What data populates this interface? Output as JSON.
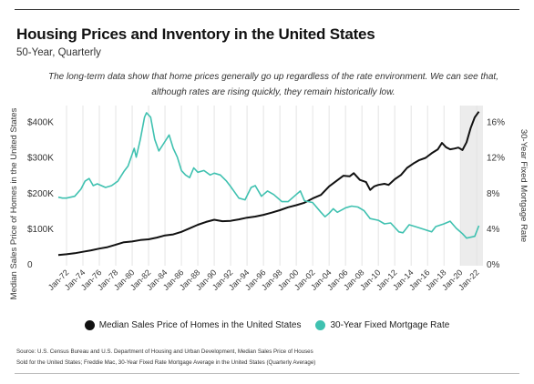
{
  "header": {
    "title": "Housing Prices and Inventory in the United States",
    "subtitle": "50-Year, Quarterly",
    "annotation_line1": "The long-term data show that home prices generally go up regardless of the rate environment. We can see that,",
    "annotation_line2": "although rates are rising quickly, they remain historically low."
  },
  "legend": {
    "price_label": "Median Sales Price of Homes in the United States",
    "rate_label": "30-Year Fixed Mortgage Rate"
  },
  "source": {
    "line1": "Source:  U.S. Census Bureau and U.S. Department of Housing and Urban Development, Median Sales Price of Houses",
    "line2": "Sold for the United States; Freddie Mac, 30-Year Fixed Rate Mortgage Average in the United States (Quarterly Average)"
  },
  "colors": {
    "price": "#111111",
    "rate": "#3fc1b0",
    "shade": "#ececec",
    "grid": "#e4e4e4"
  },
  "chart_data": {
    "type": "line",
    "xlabel": "",
    "ylabel_left": "Median Sales Price of Homes in the United States",
    "ylabel_right": "30-Year Fixed Mortgage Rate",
    "x_ticks": [
      "Jan-72",
      "Jan-74",
      "Jan-76",
      "Jan-78",
      "Jan-80",
      "Jan-82",
      "Jan-84",
      "Jan-86",
      "Jan-88",
      "Jan-90",
      "Jan-92",
      "Jan-94",
      "Jan-96",
      "Jan-98",
      "Jan-00",
      "Jan-02",
      "Jan-04",
      "Jan-06",
      "Jan-08",
      "Jan-10",
      "Jan-12",
      "Jan-14",
      "Jan-16",
      "Jan-18",
      "Jan-20",
      "Jan-22"
    ],
    "x_range": [
      1971.0,
      2022.75
    ],
    "y_left_ticks": [
      "0",
      "$100K",
      "$200K",
      "$300K",
      "$400K"
    ],
    "y_left_range": [
      0,
      440000
    ],
    "y_right_ticks": [
      "0%",
      "4%",
      "8%",
      "12%",
      "16%"
    ],
    "y_right_range": [
      0,
      17.6
    ],
    "shaded_region": [
      2020.0,
      2022.75
    ],
    "grid": "vertical",
    "series": [
      {
        "name": "Median Sales Price of Homes in the United States",
        "axis": "left",
        "points": [
          [
            1971.0,
            25000
          ],
          [
            1972.0,
            27000
          ],
          [
            1973.0,
            30000
          ],
          [
            1974.0,
            34000
          ],
          [
            1975.0,
            38000
          ],
          [
            1976.0,
            43000
          ],
          [
            1977.0,
            47000
          ],
          [
            1978.0,
            54000
          ],
          [
            1979.0,
            61000
          ],
          [
            1980.0,
            63000
          ],
          [
            1981.0,
            67000
          ],
          [
            1982.0,
            69000
          ],
          [
            1983.0,
            74000
          ],
          [
            1984.0,
            80000
          ],
          [
            1985.0,
            83000
          ],
          [
            1986.0,
            90000
          ],
          [
            1987.0,
            100000
          ],
          [
            1988.0,
            110000
          ],
          [
            1989.0,
            118000
          ],
          [
            1990.0,
            124000
          ],
          [
            1991.0,
            120000
          ],
          [
            1992.0,
            121000
          ],
          [
            1993.0,
            125000
          ],
          [
            1994.0,
            130000
          ],
          [
            1995.0,
            133000
          ],
          [
            1996.0,
            138000
          ],
          [
            1997.0,
            144000
          ],
          [
            1998.0,
            151000
          ],
          [
            1999.0,
            159000
          ],
          [
            2000.0,
            165000
          ],
          [
            2001.0,
            172000
          ],
          [
            2002.0,
            184000
          ],
          [
            2003.0,
            194000
          ],
          [
            2004.0,
            218000
          ],
          [
            2005.0,
            235000
          ],
          [
            2005.75,
            248000
          ],
          [
            2006.5,
            246000
          ],
          [
            2007.0,
            255000
          ],
          [
            2007.75,
            236000
          ],
          [
            2008.5,
            230000
          ],
          [
            2009.0,
            208000
          ],
          [
            2009.5,
            218000
          ],
          [
            2010.0,
            222000
          ],
          [
            2010.75,
            225000
          ],
          [
            2011.25,
            222000
          ],
          [
            2012.0,
            238000
          ],
          [
            2012.75,
            250000
          ],
          [
            2013.5,
            270000
          ],
          [
            2014.25,
            282000
          ],
          [
            2015.0,
            292000
          ],
          [
            2015.75,
            298000
          ],
          [
            2016.5,
            311000
          ],
          [
            2017.25,
            322000
          ],
          [
            2017.75,
            340000
          ],
          [
            2018.25,
            328000
          ],
          [
            2018.75,
            322000
          ],
          [
            2019.25,
            324000
          ],
          [
            2019.75,
            327000
          ],
          [
            2020.25,
            320000
          ],
          [
            2020.75,
            342000
          ],
          [
            2021.25,
            382000
          ],
          [
            2021.75,
            412000
          ],
          [
            2022.25,
            428000
          ]
        ]
      },
      {
        "name": "30-Year Fixed Mortgage Rate",
        "axis": "right",
        "points": [
          [
            1971.0,
            7.5
          ],
          [
            1971.5,
            7.4
          ],
          [
            1972.0,
            7.4
          ],
          [
            1973.0,
            7.6
          ],
          [
            1973.75,
            8.4
          ],
          [
            1974.25,
            9.3
          ],
          [
            1974.75,
            9.6
          ],
          [
            1975.25,
            8.8
          ],
          [
            1975.75,
            9.0
          ],
          [
            1976.25,
            8.8
          ],
          [
            1976.75,
            8.6
          ],
          [
            1977.5,
            8.8
          ],
          [
            1978.25,
            9.3
          ],
          [
            1979.0,
            10.4
          ],
          [
            1979.5,
            11.0
          ],
          [
            1980.25,
            13.0
          ],
          [
            1980.5,
            12.0
          ],
          [
            1981.0,
            14.0
          ],
          [
            1981.5,
            16.5
          ],
          [
            1981.75,
            17.0
          ],
          [
            1982.25,
            16.5
          ],
          [
            1982.75,
            14.0
          ],
          [
            1983.25,
            12.7
          ],
          [
            1983.75,
            13.4
          ],
          [
            1984.5,
            14.5
          ],
          [
            1985.0,
            13.0
          ],
          [
            1985.5,
            12.0
          ],
          [
            1986.0,
            10.5
          ],
          [
            1986.5,
            10.0
          ],
          [
            1987.0,
            9.7
          ],
          [
            1987.5,
            10.8
          ],
          [
            1988.0,
            10.3
          ],
          [
            1988.75,
            10.5
          ],
          [
            1989.5,
            10.0
          ],
          [
            1990.0,
            10.2
          ],
          [
            1990.75,
            10.0
          ],
          [
            1991.5,
            9.3
          ],
          [
            1992.0,
            8.7
          ],
          [
            1993.0,
            7.4
          ],
          [
            1993.75,
            7.2
          ],
          [
            1994.5,
            8.6
          ],
          [
            1995.0,
            8.8
          ],
          [
            1995.75,
            7.6
          ],
          [
            1996.5,
            8.2
          ],
          [
            1997.25,
            7.8
          ],
          [
            1998.25,
            7.0
          ],
          [
            1999.0,
            7.0
          ],
          [
            1999.75,
            7.6
          ],
          [
            2000.5,
            8.2
          ],
          [
            2001.0,
            7.1
          ],
          [
            2002.0,
            6.9
          ],
          [
            2003.0,
            5.8
          ],
          [
            2003.5,
            5.3
          ],
          [
            2004.0,
            5.7
          ],
          [
            2004.5,
            6.2
          ],
          [
            2005.0,
            5.8
          ],
          [
            2006.0,
            6.3
          ],
          [
            2006.75,
            6.5
          ],
          [
            2007.5,
            6.4
          ],
          [
            2008.25,
            6.0
          ],
          [
            2009.0,
            5.1
          ],
          [
            2010.0,
            4.9
          ],
          [
            2010.75,
            4.5
          ],
          [
            2011.5,
            4.6
          ],
          [
            2012.5,
            3.6
          ],
          [
            2013.0,
            3.5
          ],
          [
            2013.75,
            4.4
          ],
          [
            2014.5,
            4.2
          ],
          [
            2015.5,
            3.9
          ],
          [
            2016.5,
            3.6
          ],
          [
            2017.0,
            4.2
          ],
          [
            2018.0,
            4.5
          ],
          [
            2018.75,
            4.8
          ],
          [
            2019.5,
            4.0
          ],
          [
            2020.25,
            3.4
          ],
          [
            2020.75,
            2.9
          ],
          [
            2021.25,
            3.0
          ],
          [
            2021.75,
            3.1
          ],
          [
            2022.25,
            4.3
          ]
        ]
      }
    ]
  }
}
